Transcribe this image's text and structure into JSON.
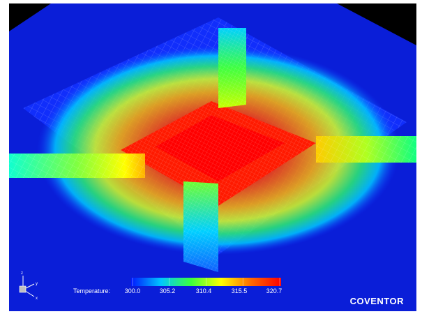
{
  "legend": {
    "title": "Temperature:",
    "ticks": [
      "300.0",
      "305.2",
      "310.4",
      "315.5",
      "320.7"
    ],
    "colors": [
      "#0019ff",
      "#00c8ff",
      "#3cff3c",
      "#ffff00",
      "#ff6a00",
      "#ff0000"
    ]
  },
  "brand": "COVENTOR",
  "axes_icon": {
    "labels": [
      "z",
      "y",
      "x"
    ]
  }
}
